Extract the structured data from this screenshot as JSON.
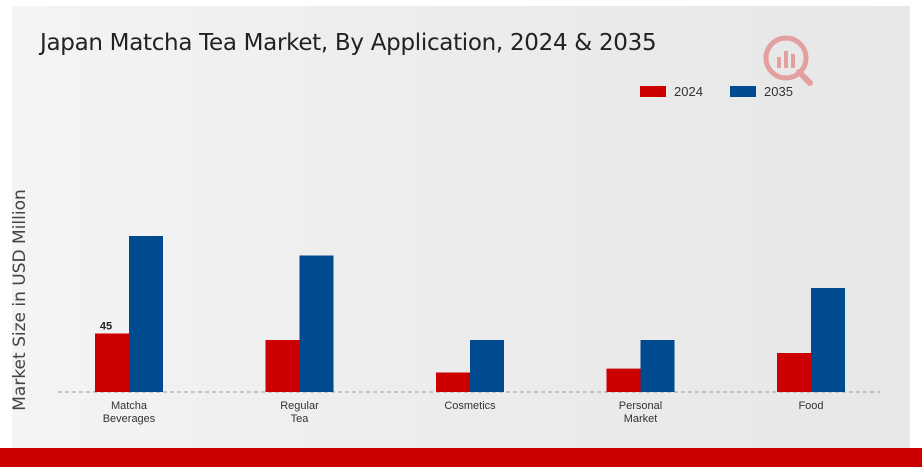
{
  "title": "Japan Matcha Tea Market, By Application, 2024 & 2035",
  "chart_data": {
    "type": "bar",
    "title": "Japan Matcha Tea Market, By Application, 2024 & 2035",
    "xlabel": "",
    "ylabel": "Market Size in USD Million",
    "categories": [
      [
        "Matcha",
        "Beverages"
      ],
      [
        "Regular",
        "Tea"
      ],
      [
        "Cosmetics"
      ],
      [
        "Personal",
        "Market"
      ],
      [
        "Food"
      ]
    ],
    "series": [
      {
        "name": "2024",
        "color": "#cc0000",
        "values": [
          45,
          40,
          15,
          18,
          30
        ]
      },
      {
        "name": "2035",
        "color": "#004a8f",
        "values": [
          120,
          105,
          40,
          40,
          80
        ]
      }
    ],
    "data_labels": [
      {
        "series": 0,
        "index": 0,
        "text": "45"
      }
    ],
    "ylim": [
      0,
      140
    ],
    "grid": false,
    "baseline": "dashed",
    "legend_position": "top-right"
  }
}
